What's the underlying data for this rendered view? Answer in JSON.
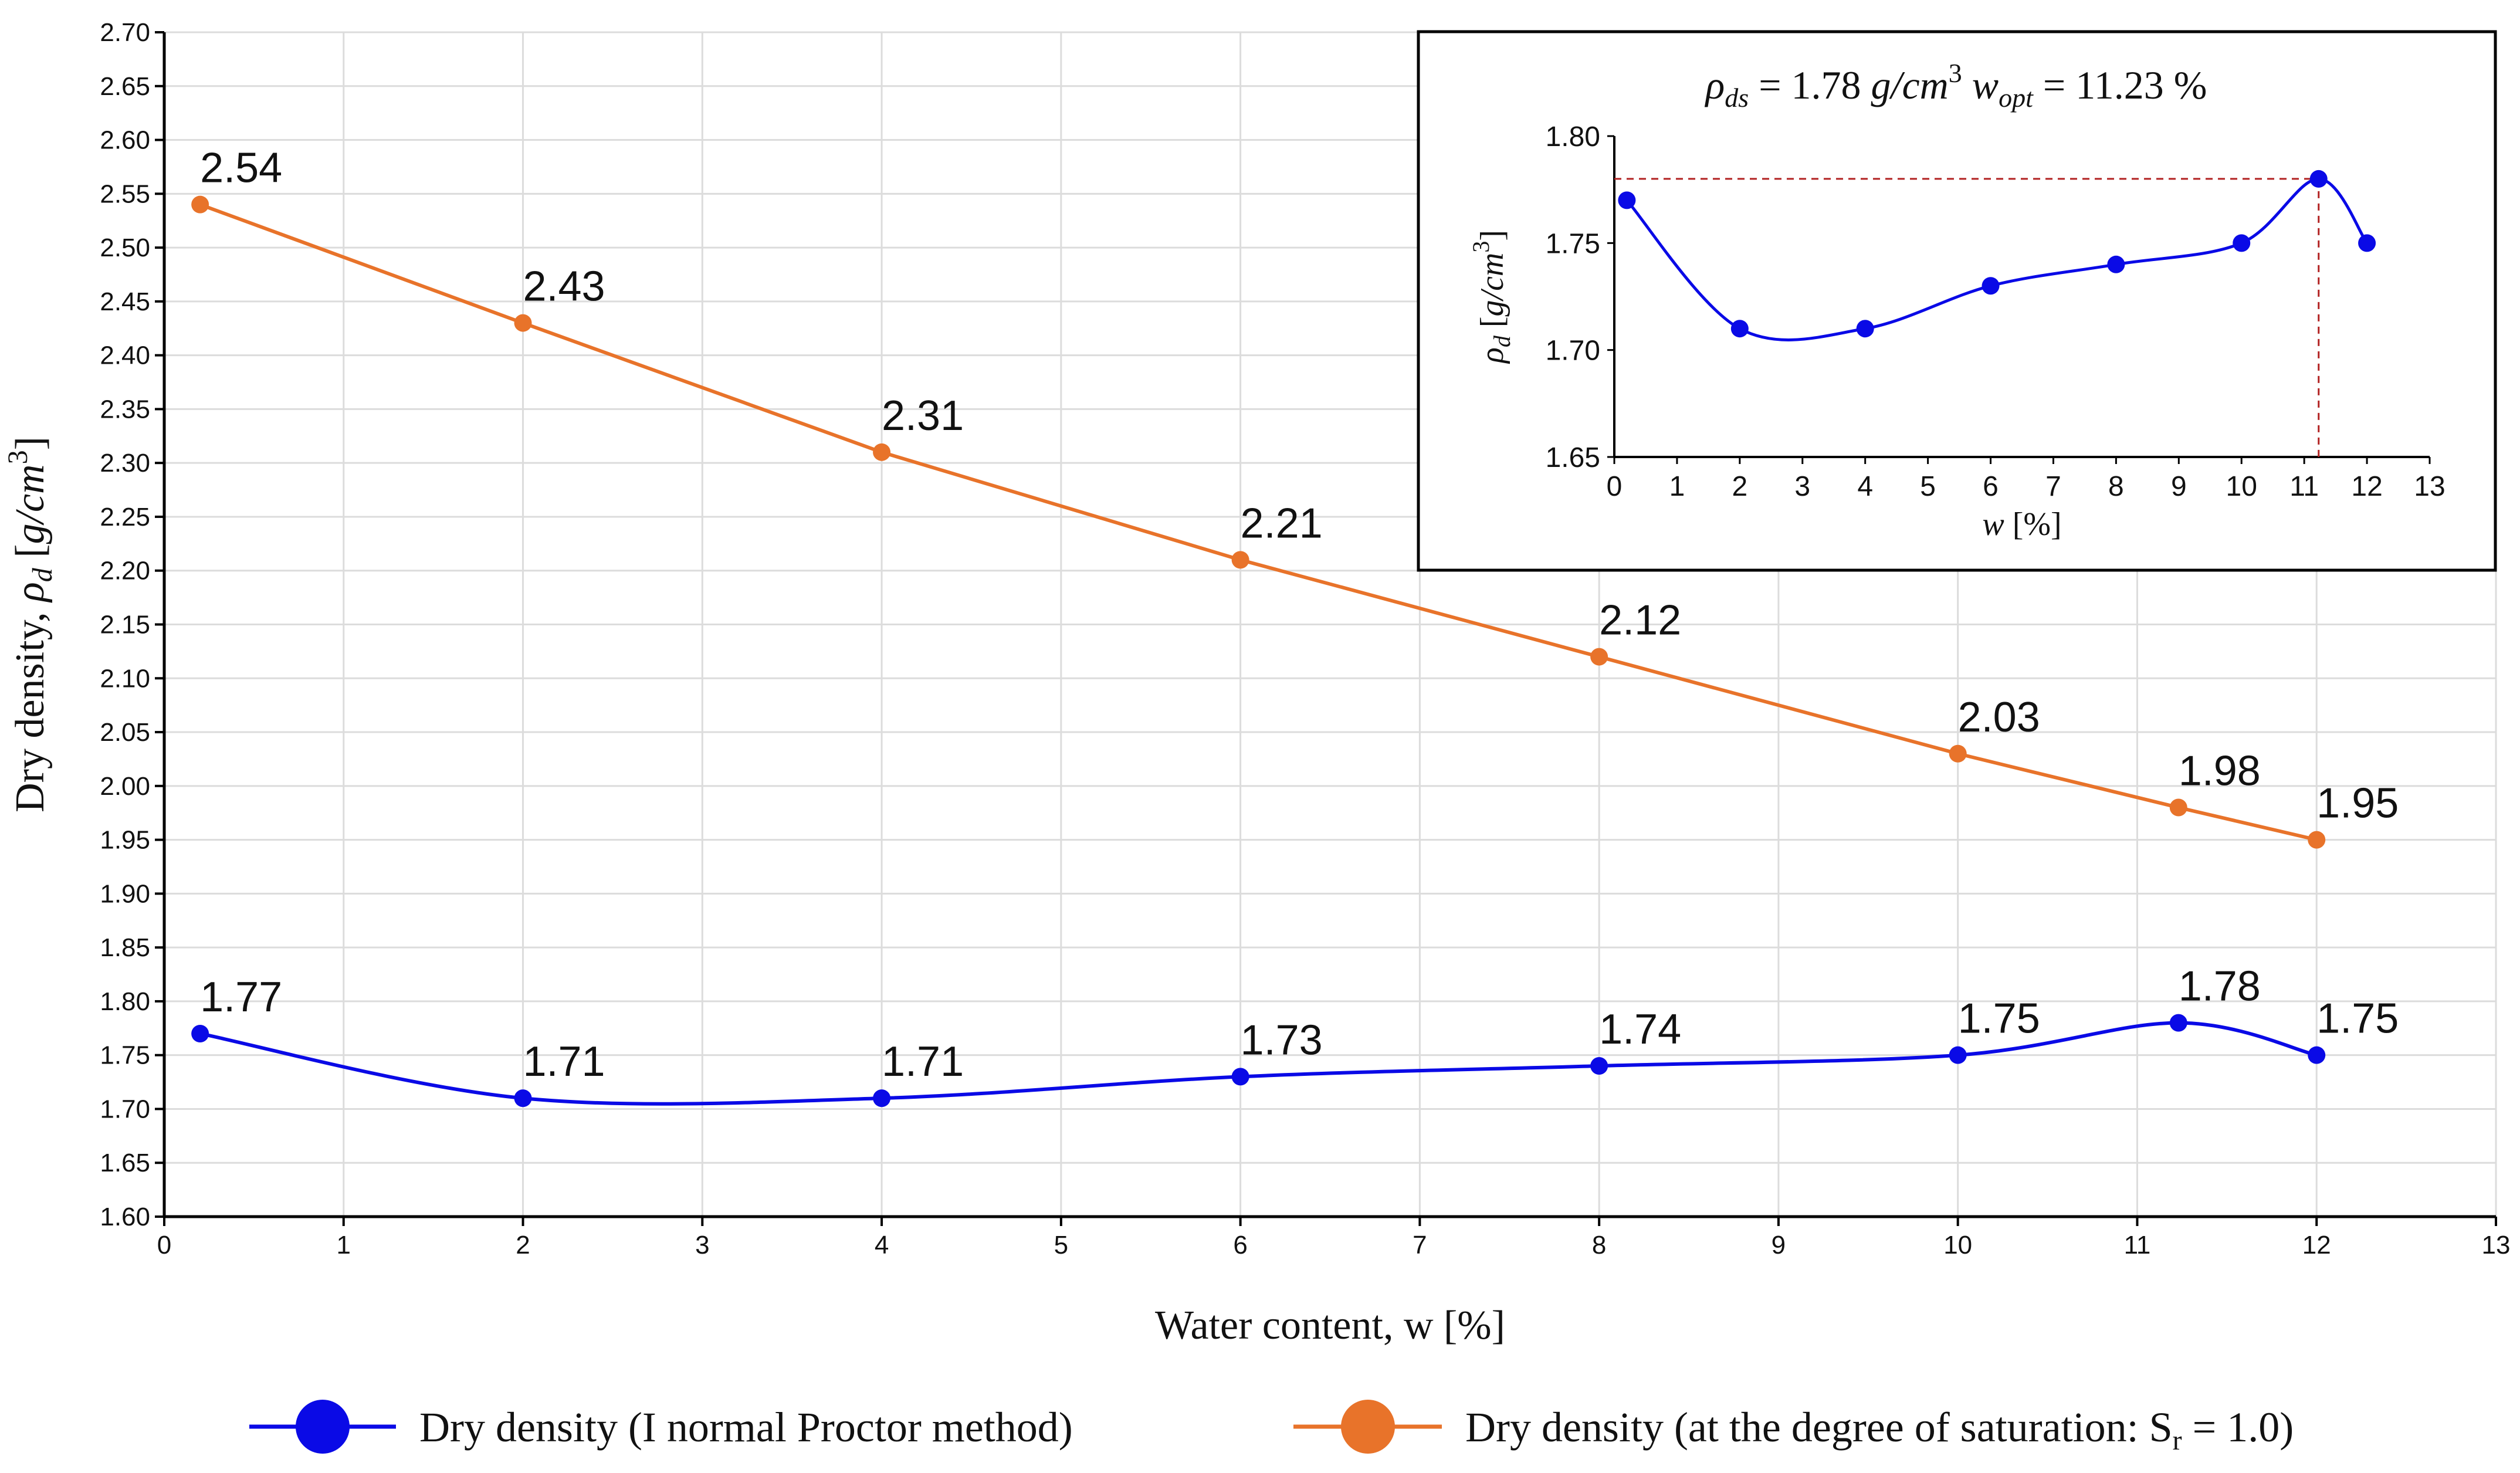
{
  "chart_data": {
    "type": "line",
    "x": [
      0.2,
      2,
      4,
      6,
      8,
      10,
      11.23,
      12
    ],
    "series": [
      {
        "name": "Dry density (I normal Proctor method)",
        "color": "#0a0ae6",
        "x": [
          0.2,
          2,
          4,
          6,
          8,
          10,
          11.23,
          12
        ],
        "values": [
          1.77,
          1.71,
          1.71,
          1.73,
          1.74,
          1.75,
          1.78,
          1.75
        ],
        "labels": [
          "1.77",
          "1.71",
          "1.71",
          "1.73",
          "1.74",
          "1.75",
          "1.78",
          "1.75"
        ]
      },
      {
        "name": "Dry density (at the degree of saturation: S_r = 1.0)",
        "color": "#e8732a",
        "x": [
          0.2,
          2,
          4,
          6,
          8,
          10,
          11.23,
          12
        ],
        "values": [
          2.54,
          2.43,
          2.31,
          2.21,
          2.12,
          2.03,
          1.98,
          1.95
        ],
        "labels": [
          "2.54",
          "2.43",
          "2.31",
          "2.21",
          "2.12",
          "2.03",
          "1.98",
          "1.95"
        ]
      }
    ],
    "xlabel": "Water content, w [%]",
    "ylabel": "Dry density, ρd [g/cm3]",
    "xlim": [
      0,
      13
    ],
    "ylim": [
      1.6,
      2.7
    ],
    "x_ticks": [
      "0",
      "1",
      "2",
      "3",
      "4",
      "5",
      "6",
      "7",
      "8",
      "9",
      "10",
      "11",
      "12",
      "13"
    ],
    "y_ticks": [
      "1.60",
      "1.65",
      "1.70",
      "1.75",
      "1.80",
      "1.85",
      "1.90",
      "1.95",
      "2.00",
      "2.05",
      "2.10",
      "2.15",
      "2.20",
      "2.25",
      "2.30",
      "2.35",
      "2.40",
      "2.45",
      "2.50",
      "2.55",
      "2.60",
      "2.65",
      "2.70"
    ],
    "grid": true,
    "legend_position": "bottom",
    "legend": [
      {
        "label": "Dry density (I normal Proctor method)",
        "color": "#0a0ae6"
      },
      {
        "label_main": "Dry density (at the degree of saturation: S",
        "label_sub": "r",
        "label_tail": " = 1.0)",
        "color": "#e8732a"
      }
    ],
    "inset": {
      "type": "line",
      "position": "top-right",
      "annotation": {
        "rho_ds": "1.78",
        "rho_unit": "g/cm",
        "w_opt": "11.23",
        "w_unit": "%"
      },
      "x": [
        0.2,
        2,
        4,
        6,
        8,
        10,
        11.23,
        12
      ],
      "values": [
        1.77,
        1.71,
        1.71,
        1.73,
        1.74,
        1.75,
        1.78,
        1.75
      ],
      "color": "#0a0ae6",
      "xlim": [
        0,
        13
      ],
      "ylim": [
        1.65,
        1.8
      ],
      "x_ticks": [
        "0",
        "1",
        "2",
        "3",
        "4",
        "5",
        "6",
        "7",
        "8",
        "9",
        "10",
        "11",
        "12",
        "13"
      ],
      "y_ticks": [
        "1.65",
        "1.70",
        "1.75",
        "1.80"
      ],
      "xlabel": "w [%]",
      "ylabel": "ρd [g/cm3]",
      "optimum": {
        "x": 11.23,
        "y": 1.78
      },
      "grid": false
    }
  }
}
